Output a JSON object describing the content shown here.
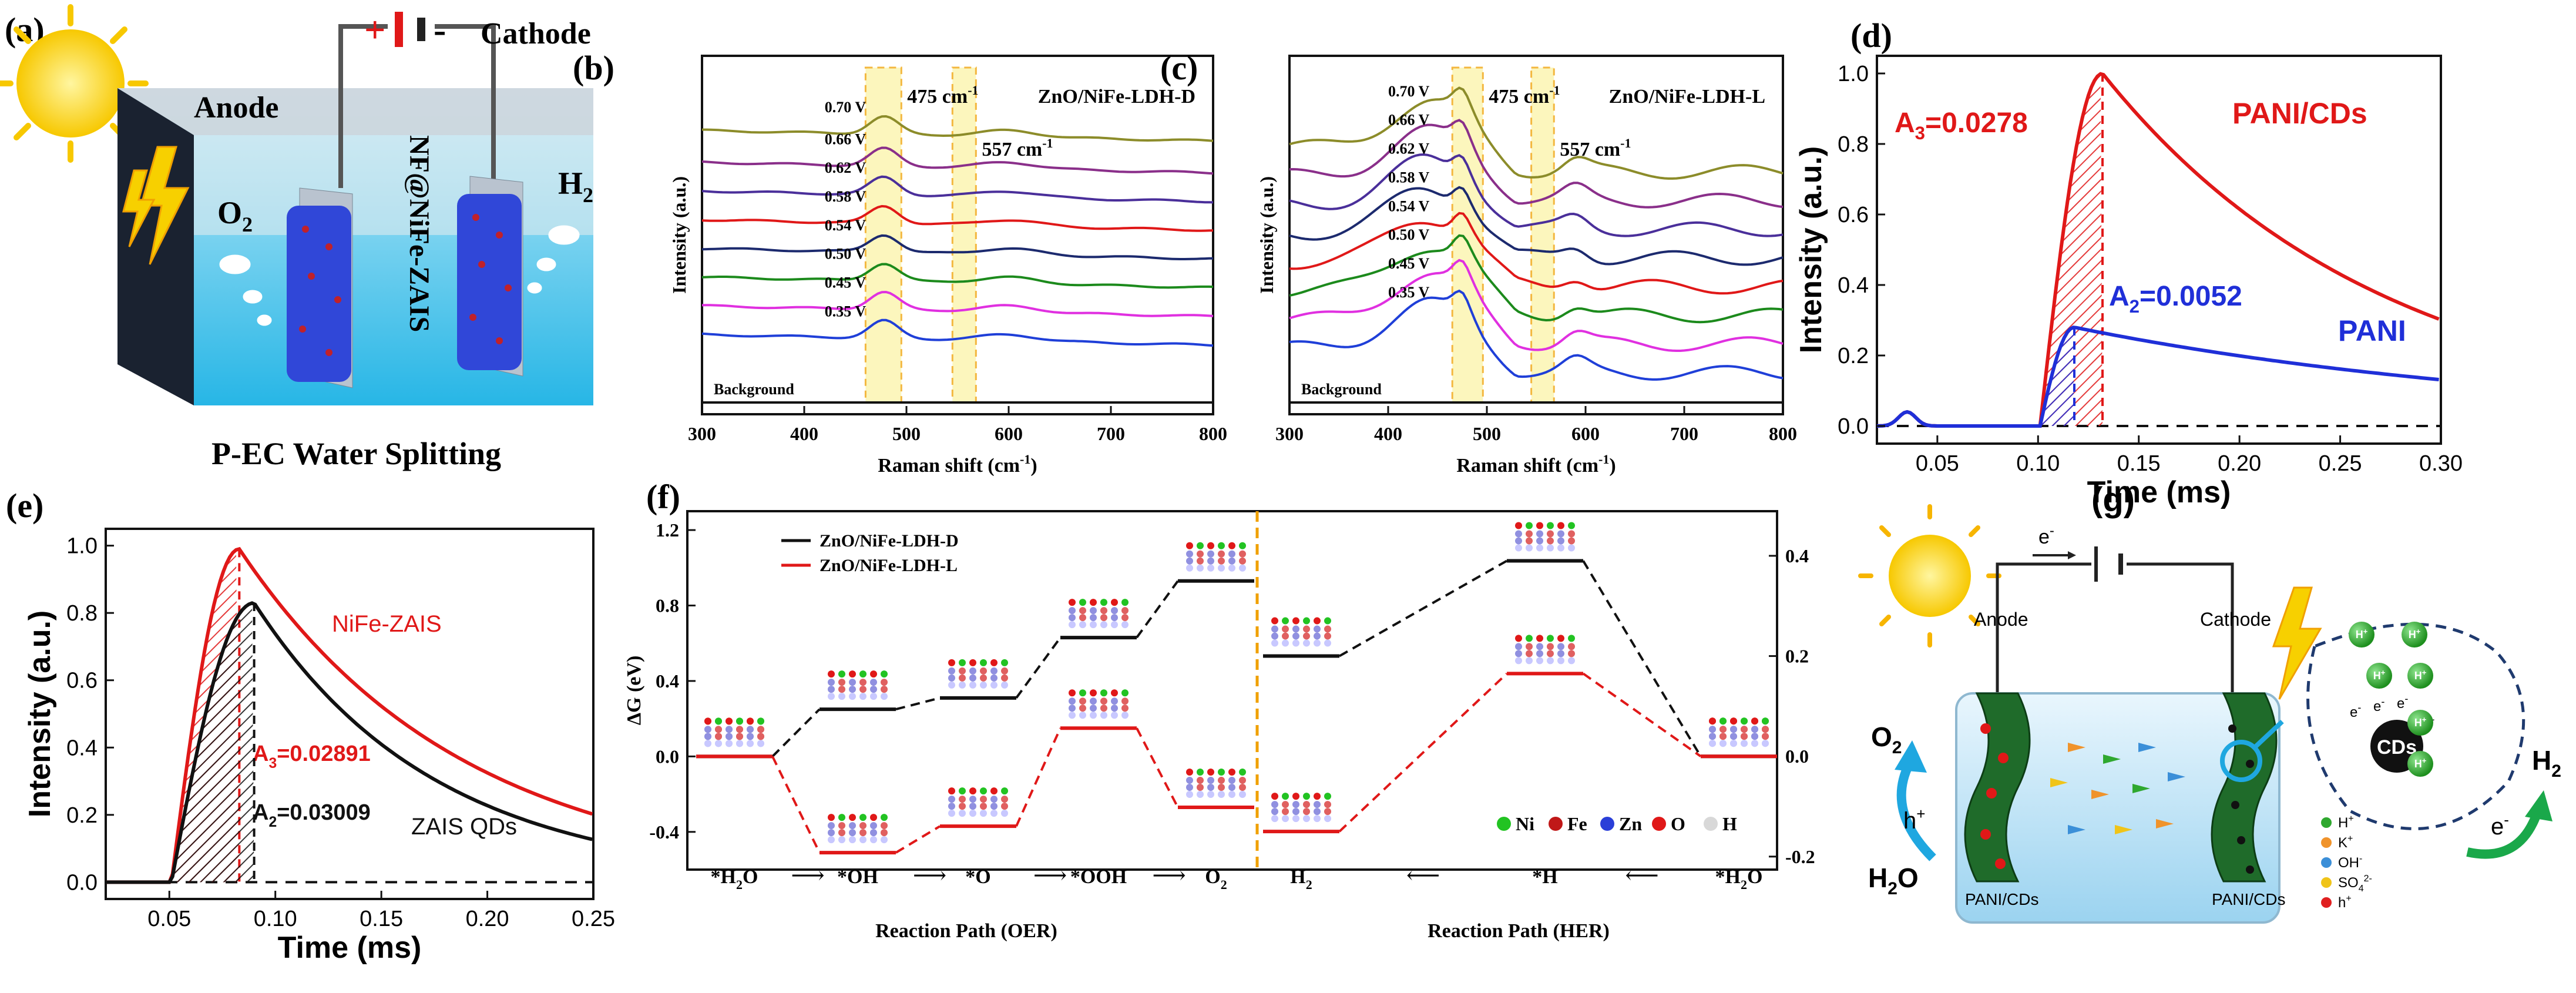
{
  "panels": {
    "a": {
      "label": "(a)",
      "plus": "+",
      "minus": "-",
      "cathode": "Cathode",
      "anode": "Anode",
      "o2": "O",
      "o2_sub": "2",
      "h2": "H",
      "h2_sub": "2",
      "electrode": "NF@NiFe-ZAIS",
      "caption": "P-EC Water Splitting"
    },
    "g": {
      "label": "(g)",
      "electron": "e",
      "electron_sup": "-",
      "anode": "Anode",
      "cathode": "Cathode",
      "o2": "O",
      "o2_sub": "2",
      "h2": "H",
      "h2_sub": "2",
      "h2o": "H",
      "h2o_sub": "2",
      "h2o_end": "O",
      "hplus": "h",
      "hplus_sup": "+",
      "eminus": "e",
      "eminus_sup": "-",
      "cds": "CDs",
      "h_ion": "H",
      "h_ion_sup": "+",
      "e_small": "e",
      "e_small_sup": "-",
      "left_label": "PANI/CDs",
      "right_label": "PANI/CDs",
      "legend": [
        {
          "label": "H",
          "sup": "+",
          "color": "#2fa82f"
        },
        {
          "label": "K",
          "sup": "+",
          "color": "#f0932b"
        },
        {
          "label": "OH",
          "sup": "-",
          "color": "#3b8fd8"
        },
        {
          "label": "SO",
          "sub": "4",
          "sup": "2-",
          "color": "#f0c419"
        },
        {
          "label": "h",
          "sup": "+",
          "color": "#e02020"
        }
      ]
    }
  },
  "chart_data": [
    {
      "id": "b",
      "label": "(b)",
      "type": "line",
      "title": "ZnO/NiFe-LDH-D",
      "xlabel": "Raman shift (cm",
      "xlabel_sup": "-1",
      "xlabel_end": ")",
      "ylabel": "Intensity (a.u.)",
      "xlim": [
        300,
        800
      ],
      "xticks": [
        300,
        400,
        500,
        600,
        700,
        800
      ],
      "bands": [
        {
          "from": 460,
          "to": 495,
          "label": "475 cm",
          "sup": "-1"
        },
        {
          "from": 545,
          "to": 568,
          "label": "557 cm",
          "sup": "-1"
        }
      ],
      "series": [
        {
          "name": "0.70 V",
          "color": "#8c8c2a",
          "offset": 8.2,
          "amp": 0.55
        },
        {
          "name": "0.66 V",
          "color": "#8a2f8a",
          "offset": 7.2,
          "amp": 0.55
        },
        {
          "name": "0.62 V",
          "color": "#4a2f9a",
          "offset": 6.3,
          "amp": 0.55
        },
        {
          "name": "0.58 V",
          "color": "#e01818",
          "offset": 5.4,
          "amp": 0.55
        },
        {
          "name": "0.54 V",
          "color": "#1c2a6e",
          "offset": 4.5,
          "amp": 0.55
        },
        {
          "name": "0.50 V",
          "color": "#1c8a1c",
          "offset": 3.6,
          "amp": 0.55
        },
        {
          "name": "0.45 V",
          "color": "#e030e0",
          "offset": 2.7,
          "amp": 0.55
        },
        {
          "name": "0.35 V",
          "color": "#1f3fd8",
          "offset": 1.8,
          "amp": 0.55
        },
        {
          "name": "Background",
          "color": "#111111",
          "offset": 0.0,
          "amp": 0.0
        }
      ]
    },
    {
      "id": "c",
      "label": "(c)",
      "type": "line",
      "title": "ZnO/NiFe-LDH-L",
      "xlabel": "Raman shift (cm",
      "xlabel_sup": "-1",
      "xlabel_end": ")",
      "ylabel": "Intensity (a.u.)",
      "xlim": [
        300,
        800
      ],
      "xticks": [
        300,
        400,
        500,
        600,
        700,
        800
      ],
      "bands": [
        {
          "from": 465,
          "to": 496,
          "label": "475 cm",
          "sup": "-1"
        },
        {
          "from": 545,
          "to": 568,
          "label": "557 cm",
          "sup": "-1"
        }
      ],
      "series": [
        {
          "name": "0.70 V",
          "color": "#8c8c2a",
          "offset": 8.0,
          "amp": 1.4
        },
        {
          "name": "0.66 V",
          "color": "#8a2f8a",
          "offset": 7.1,
          "amp": 1.4
        },
        {
          "name": "0.62 V",
          "color": "#4a2f9a",
          "offset": 6.2,
          "amp": 1.4
        },
        {
          "name": "0.58 V",
          "color": "#1c2a6e",
          "offset": 5.3,
          "amp": 1.4
        },
        {
          "name": "0.54 V",
          "color": "#e01818",
          "offset": 4.4,
          "amp": 1.4
        },
        {
          "name": "0.50 V",
          "color": "#1c8a1c",
          "offset": 3.5,
          "amp": 1.4
        },
        {
          "name": "0.45 V",
          "color": "#e030e0",
          "offset": 2.6,
          "amp": 1.4
        },
        {
          "name": "0.35 V",
          "color": "#1f3fd8",
          "offset": 1.7,
          "amp": 1.4
        },
        {
          "name": "Background",
          "color": "#111111",
          "offset": 0.0,
          "amp": 0.0
        }
      ]
    },
    {
      "id": "d",
      "label": "(d)",
      "type": "line",
      "xlabel": "Time (ms)",
      "ylabel": "Intensity (a.u.)",
      "xlim": [
        0.02,
        0.3
      ],
      "ylim": [
        -0.05,
        1.05
      ],
      "xticks": [
        0.05,
        0.1,
        0.15,
        0.2,
        0.25,
        0.3
      ],
      "yticks": [
        0.0,
        0.2,
        0.4,
        0.6,
        0.8,
        1.0
      ],
      "series": [
        {
          "name": "PANI/CDs",
          "color": "#e01818",
          "onset": 0.101,
          "peak_x": 0.132,
          "peak": 1.0,
          "decay": 0.14,
          "area_label": "A",
          "area_sub": "3",
          "area_value": "=0.0278"
        },
        {
          "name": "PANI",
          "color": "#1f2fd8",
          "onset": 0.101,
          "peak_x": 0.118,
          "peak": 0.28,
          "decay": 0.24,
          "area_label": "A",
          "area_sub": "2",
          "area_value": "=0.0052"
        }
      ]
    },
    {
      "id": "e",
      "label": "(e)",
      "type": "line",
      "xlabel": "Time (ms)",
      "ylabel": "Intensity (a.u.)",
      "xlim": [
        0.02,
        0.25
      ],
      "ylim": [
        -0.05,
        1.05
      ],
      "xticks": [
        0.05,
        0.1,
        0.15,
        0.2,
        0.25
      ],
      "yticks": [
        0.0,
        0.2,
        0.4,
        0.6,
        0.8,
        1.0
      ],
      "series": [
        {
          "name": "NiFe-ZAIS",
          "color": "#e01818",
          "onset": 0.051,
          "peak_x": 0.083,
          "peak": 0.99,
          "decay": 0.105,
          "area_label": "A",
          "area_sub": "3",
          "area_value": "=0.02891"
        },
        {
          "name": "ZAIS QDs",
          "color": "#111111",
          "onset": 0.051,
          "peak_x": 0.09,
          "peak": 0.83,
          "decay": 0.085,
          "area_label": "A",
          "area_sub": "2",
          "area_value": "=0.03009"
        }
      ]
    },
    {
      "id": "f",
      "label": "(f)",
      "type": "line",
      "ylabel": "ΔG (eV)",
      "left_ylim": [
        -0.6,
        1.3
      ],
      "left_yticks": [
        -0.4,
        0.0,
        0.4,
        0.8,
        1.2
      ],
      "right_ylim": [
        -0.226,
        0.489
      ],
      "right_yticks": [
        -0.2,
        0.0,
        0.2,
        0.4
      ],
      "oer": {
        "xlabel": "Reaction Path (OER)",
        "steps": [
          "*H",
          "*OH",
          "*O",
          "*OOH",
          "O"
        ],
        "step_subs": [
          "2",
          "",
          "",
          "",
          "2"
        ],
        "step_ends": [
          "O",
          "",
          "",
          "",
          ""
        ],
        "series": [
          {
            "name": "ZnO/NiFe-LDH-D",
            "color": "#111111",
            "values": [
              0.0,
              0.25,
              0.31,
              0.63,
              0.93
            ]
          },
          {
            "name": "ZnO/NiFe-LDH-L",
            "color": "#e01818",
            "values": [
              0.0,
              -0.51,
              -0.37,
              0.15,
              -0.27
            ]
          }
        ]
      },
      "her": {
        "xlabel": "Reaction Path (HER)",
        "steps": [
          "H",
          "*H",
          "*H"
        ],
        "step_subs": [
          "2",
          "",
          "2"
        ],
        "step_ends": [
          "",
          "",
          "O"
        ],
        "series": [
          {
            "name": "ZnO/NiFe-LDH-D",
            "color": "#111111",
            "values": [
              0.2,
              0.39,
              0.0
            ]
          },
          {
            "name": "ZnO/NiFe-LDH-L",
            "color": "#e01818",
            "values": [
              -0.15,
              0.165,
              0.0
            ]
          }
        ]
      },
      "arrow_glyph": "⟶",
      "arrow_back_glyph": "⟵",
      "atom_legend": [
        {
          "label": "Ni",
          "color": "#22c322"
        },
        {
          "label": "Fe",
          "color": "#c01818"
        },
        {
          "label": "Zn",
          "color": "#2a3fd8"
        },
        {
          "label": "O",
          "color": "#e01818"
        },
        {
          "label": "H",
          "color": "#d8d8d8"
        }
      ]
    }
  ]
}
